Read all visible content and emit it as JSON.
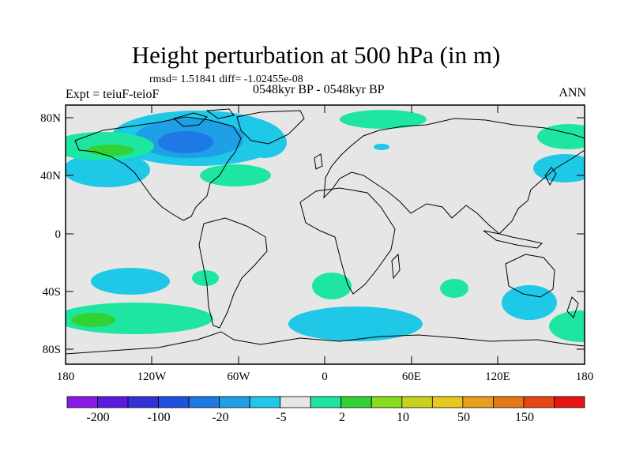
{
  "title": "Height perturbation at 500 hPa (in m)",
  "stats_text": "rmsd= 1.51841 diff= -1.02455e-08",
  "left_label": "Expt = teiuF-teioF",
  "center_label": "0548kyr BP - 0548kyr BP",
  "right_label": "ANN",
  "lat_ticks": [
    "80N",
    "40N",
    "0",
    "40S",
    "80S"
  ],
  "lon_ticks": [
    "180",
    "120W",
    "60W",
    "0",
    "60E",
    "120E",
    "180"
  ],
  "colorbar": {
    "labels": [
      "-200",
      "-100",
      "-20",
      "-5",
      "2",
      "10",
      "50",
      "150"
    ],
    "colors": [
      "#8a1ae6",
      "#5a1ae0",
      "#3232d8",
      "#2150e0",
      "#1e78e6",
      "#1e9fe6",
      "#1ec8e6",
      "#e6e6e6",
      "#1ee6a0",
      "#32d232",
      "#8adc1e",
      "#c8d21e",
      "#e6c81e",
      "#e6a01e",
      "#e67814",
      "#e64614",
      "#e61414"
    ]
  },
  "map_colors": {
    "background": "#e6e6e6",
    "negative_light": "#1ec8e6",
    "negative_mid": "#1e9fe6",
    "negative_dark": "#1e78e6",
    "positive_light": "#1ee6a0",
    "positive_mid": "#32d232"
  }
}
